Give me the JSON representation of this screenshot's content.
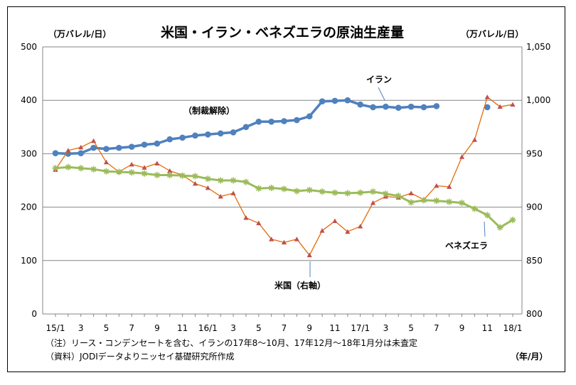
{
  "chart_data": {
    "type": "line",
    "title": "米国・イラン・ベネズエラの原油生産量",
    "ylabel_left": "（万バレル/日）",
    "ylabel_right": "（万バレル/日）",
    "xlabel": "（年/月）",
    "ylim_left": [
      0,
      500
    ],
    "ylim_right": [
      800,
      1050
    ],
    "yticks_left": [
      "0",
      "100",
      "200",
      "300",
      "400",
      "500"
    ],
    "yticks_right": [
      "800",
      "850",
      "900",
      "950",
      "1,000",
      "1,050"
    ],
    "grid": true,
    "x": [
      "15/1",
      "15/2",
      "15/3",
      "15/4",
      "15/5",
      "15/6",
      "15/7",
      "15/8",
      "15/9",
      "15/10",
      "15/11",
      "15/12",
      "16/1",
      "16/2",
      "16/3",
      "16/4",
      "16/5",
      "16/6",
      "16/7",
      "16/8",
      "16/9",
      "16/10",
      "16/11",
      "16/12",
      "17/1",
      "17/2",
      "17/3",
      "17/4",
      "17/5",
      "17/6",
      "17/7",
      "17/8",
      "17/9",
      "17/10",
      "17/11",
      "17/12",
      "18/1"
    ],
    "xtick_labels": [
      "15/1",
      "",
      "3",
      "",
      "5",
      "",
      "7",
      "",
      "9",
      "",
      "11",
      "",
      "16/1",
      "",
      "3",
      "",
      "5",
      "",
      "7",
      "",
      "9",
      "",
      "11",
      "",
      "17/1",
      "",
      "3",
      "",
      "5",
      "",
      "7",
      "",
      "9",
      "",
      "11",
      "",
      "18/1"
    ],
    "series": [
      {
        "name": "イラン",
        "axis": "left",
        "color": "#4F81BD",
        "marker": "circle",
        "values": [
          301,
          300,
          301,
          311,
          309,
          311,
          313,
          317,
          319,
          327,
          330,
          334,
          336,
          338,
          340,
          350,
          360,
          360,
          361,
          363,
          370,
          398,
          399,
          400,
          392,
          387,
          388,
          386,
          388,
          387,
          389,
          null,
          null,
          null,
          387,
          null,
          null
        ]
      },
      {
        "name": "米国（右軸）",
        "axis": "right",
        "color": "#C0504D",
        "line_color": "#E36C09",
        "marker": "triangle",
        "values": [
          935,
          953,
          956,
          962,
          942,
          933,
          940,
          937,
          941,
          934,
          930,
          922,
          918,
          910,
          913,
          890,
          885,
          870,
          867,
          870,
          855,
          878,
          887,
          877,
          882,
          904,
          910,
          909,
          913,
          907,
          920,
          919,
          947,
          963,
          1003,
          994,
          996
        ]
      },
      {
        "name": "ベネズエラ",
        "axis": "left",
        "color": "#9BBB59",
        "marker": "star",
        "values": [
          273,
          275,
          273,
          271,
          267,
          266,
          265,
          263,
          260,
          260,
          259,
          258,
          253,
          250,
          250,
          247,
          235,
          236,
          234,
          230,
          232,
          229,
          227,
          226,
          227,
          229,
          225,
          221,
          209,
          213,
          212,
          210,
          208,
          197,
          185,
          162,
          176
        ]
      }
    ],
    "annotations": {
      "iran": "イラン",
      "us": "米国（右軸）",
      "venezuela": "ベネズエラ",
      "sanctions": "（制裁解除）"
    },
    "notes": [
      "（注）リース・コンデンセートを含む、イランの17年8～10月、17年12月～18年1月分は未査定",
      "（資料）JODIデータよりニッセイ基礎研究所作成"
    ]
  }
}
